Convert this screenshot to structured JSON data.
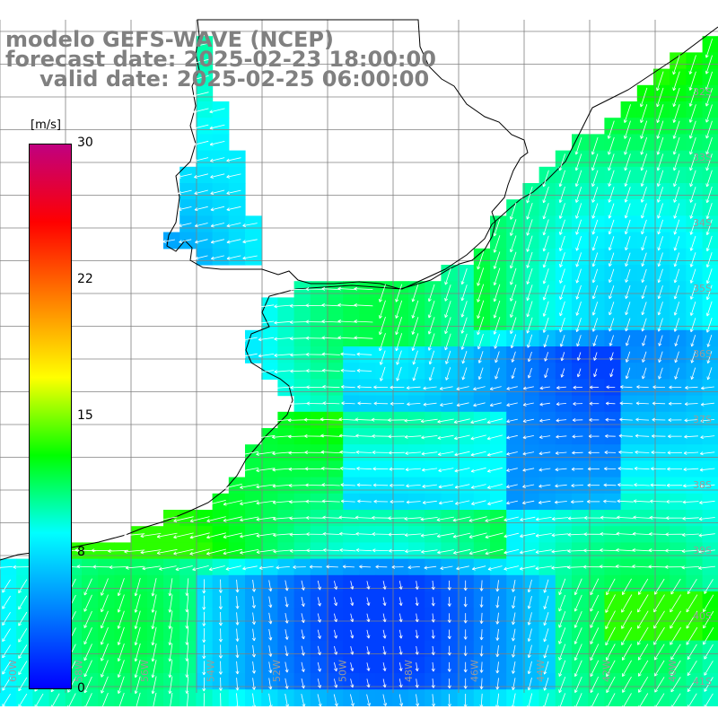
{
  "title": {
    "model": "modelo GEFS-WAVE (NCEP)",
    "forecast": "forecast date: 2025-02-23 18:00:00",
    "valid": "valid date: 2025-02-25 06:00:00"
  },
  "colorbar": {
    "unit": "[m/s]",
    "ticks": [
      "30",
      "22",
      "15",
      "8",
      "0"
    ],
    "colors": [
      "#0000ff",
      "#0080ff",
      "#00ffff",
      "#00ff00",
      "#ffff00",
      "#ff8000",
      "#ff0000",
      "#c00080"
    ]
  },
  "axes": {
    "lon_labels": [
      "60W",
      "58W",
      "56W",
      "54W",
      "52W",
      "50W",
      "48W",
      "46W",
      "44W",
      "42W",
      "40W"
    ],
    "lat_labels": [
      "32S",
      "33S",
      "34S",
      "35S",
      "36S",
      "37S",
      "38S",
      "39S",
      "40S",
      "41S"
    ]
  },
  "colors": {
    "land": "#ffffff",
    "grid": "#808080",
    "coast": "#000000",
    "arrow": "#ffffff"
  }
}
